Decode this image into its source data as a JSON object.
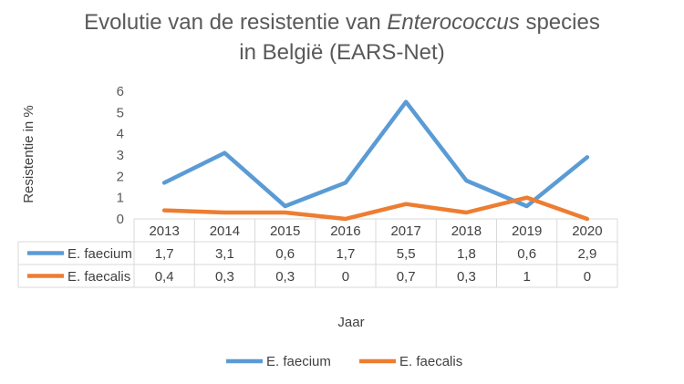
{
  "chart_data": {
    "type": "line",
    "title_parts": [
      "Evolutie van de resistentie van ",
      "Enterococcus",
      " species",
      "in België (EARS-Net)"
    ],
    "xlabel": "Jaar",
    "ylabel": "Resistentie in %",
    "ylim": [
      0,
      6
    ],
    "yticks": [
      "0",
      "1",
      "2",
      "3",
      "4",
      "5",
      "6"
    ],
    "categories": [
      "2013",
      "2014",
      "2015",
      "2016",
      "2017",
      "2018",
      "2019",
      "2020"
    ],
    "grid": false,
    "legend_placement": "bottom",
    "data_table": true,
    "series": [
      {
        "name": "E. faecium",
        "color": "#5B9BD5",
        "values": [
          1.7,
          3.1,
          0.6,
          1.7,
          5.5,
          1.8,
          0.6,
          2.9
        ],
        "labels": [
          "1,7",
          "3,1",
          "0,6",
          "1,7",
          "5,5",
          "1,8",
          "0,6",
          "2,9"
        ]
      },
      {
        "name": "E. faecalis",
        "color": "#ED7D31",
        "values": [
          0.4,
          0.3,
          0.3,
          0,
          0.7,
          0.3,
          1,
          0
        ],
        "labels": [
          "0,4",
          "0,3",
          "0,3",
          "0",
          "0,7",
          "0,3",
          "1",
          "0"
        ]
      }
    ]
  }
}
